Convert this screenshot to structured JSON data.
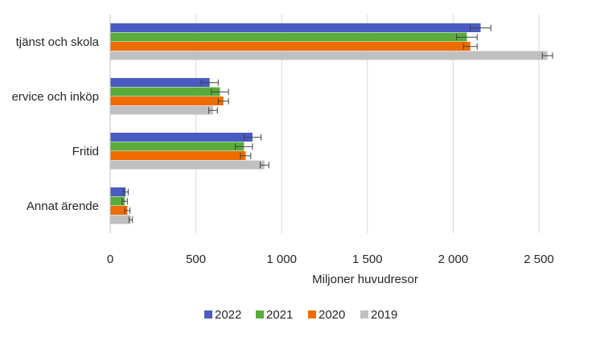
{
  "chart_data": {
    "type": "bar",
    "orientation": "horizontal",
    "categories": [
      "tjänst och skola",
      "ervice och inköp",
      "Fritid",
      "Annat ärende"
    ],
    "series": [
      {
        "name": "2022",
        "color": "#4a5bc4",
        "values": [
          2160,
          580,
          830,
          90
        ],
        "errors": [
          60,
          50,
          50,
          15
        ]
      },
      {
        "name": "2021",
        "color": "#5aab3c",
        "values": [
          2080,
          640,
          780,
          85
        ],
        "errors": [
          60,
          50,
          50,
          15
        ]
      },
      {
        "name": "2020",
        "color": "#ef6c00",
        "values": [
          2100,
          660,
          790,
          100
        ],
        "errors": [
          40,
          30,
          30,
          15
        ]
      },
      {
        "name": "2019",
        "color": "#c0c0c0",
        "values": [
          2550,
          600,
          900,
          120
        ],
        "errors": [
          30,
          25,
          25,
          10
        ]
      }
    ],
    "xlabel": "Miljoner huvudresor",
    "ylabel": "",
    "xlim": [
      0,
      2500
    ],
    "xticks": [
      0,
      500,
      1000,
      1500,
      2000,
      2500
    ],
    "xtick_labels": [
      "0",
      "500",
      "1 000",
      "1 500",
      "2 000",
      "2 500"
    ],
    "grid": "vertical",
    "legend": "bottom",
    "error_bars": true
  }
}
